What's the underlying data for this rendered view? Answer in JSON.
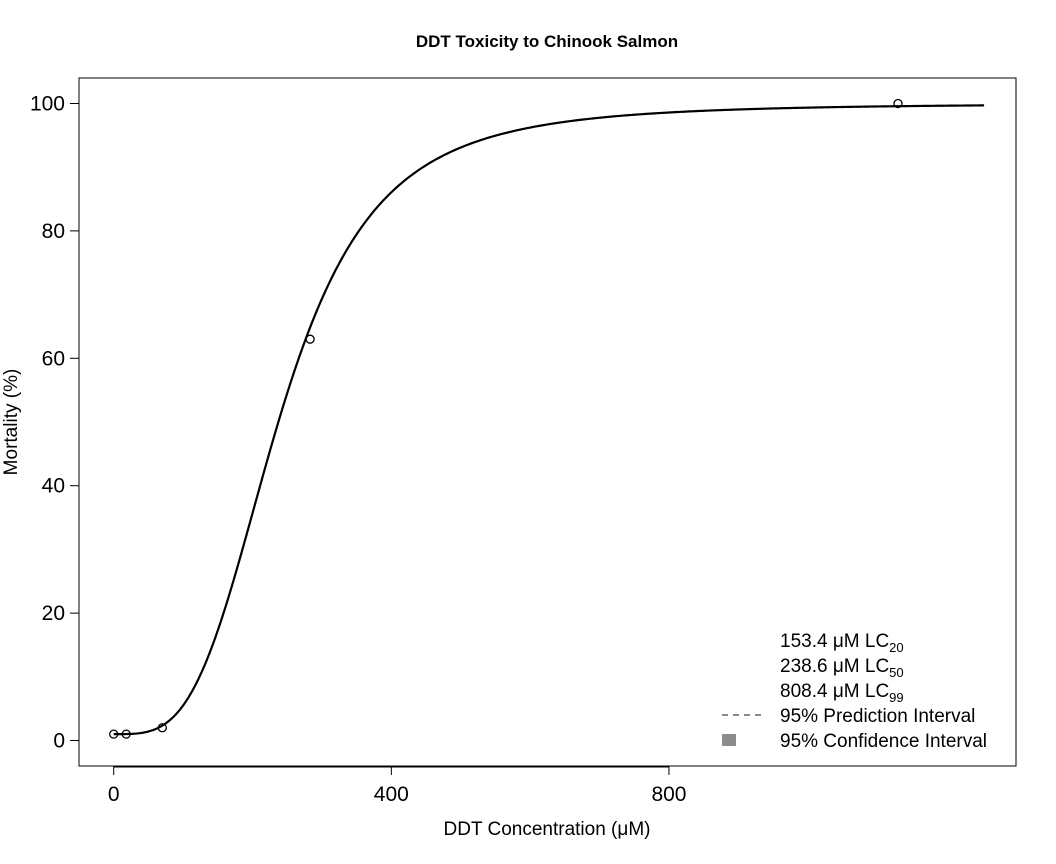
{
  "chart_data": {
    "type": "line",
    "title": "DDT Toxicity to Chinook Salmon",
    "xlabel_main": "DDT Concentration (",
    "xlabel_unit": "μ",
    "xlabel_end": "M)",
    "ylabel": "Mortality (%)",
    "xlim": [
      -50,
      1300
    ],
    "ylim": [
      -4,
      104
    ],
    "x_ticks": [
      0,
      400,
      800
    ],
    "x_tick_labels": [
      "0",
      "400",
      "800"
    ],
    "y_ticks": [
      0,
      20,
      40,
      60,
      80,
      100
    ],
    "y_tick_labels": [
      "0",
      "20",
      "40",
      "60",
      "80",
      "100"
    ],
    "points": [
      {
        "x": 0,
        "y": 1
      },
      {
        "x": 18,
        "y": 1
      },
      {
        "x": 70,
        "y": 2
      },
      {
        "x": 283,
        "y": 63
      },
      {
        "x": 1130,
        "y": 100
      }
    ],
    "fit": {
      "model": "log-logistic",
      "lower": 1,
      "upper": 100,
      "ec50": 238.6,
      "slope": 3.5,
      "x_range": [
        0,
        1254
      ]
    },
    "legend_position": "bottom-right",
    "legend": [
      {
        "value": "153.4 μM LC",
        "sub": "20",
        "symbol": "none"
      },
      {
        "value": "238.6 μM LC",
        "sub": "50",
        "symbol": "none"
      },
      {
        "value": "808.4 μM LC",
        "sub": "99",
        "symbol": "none"
      },
      {
        "value": "95% Prediction Interval",
        "symbol": "dashed-line"
      },
      {
        "value": "95% Confidence Interval",
        "symbol": "gray-square"
      }
    ],
    "colors": {
      "line": "#000000",
      "points": "#000000",
      "confidence_fill": "#8c8c8c"
    }
  }
}
